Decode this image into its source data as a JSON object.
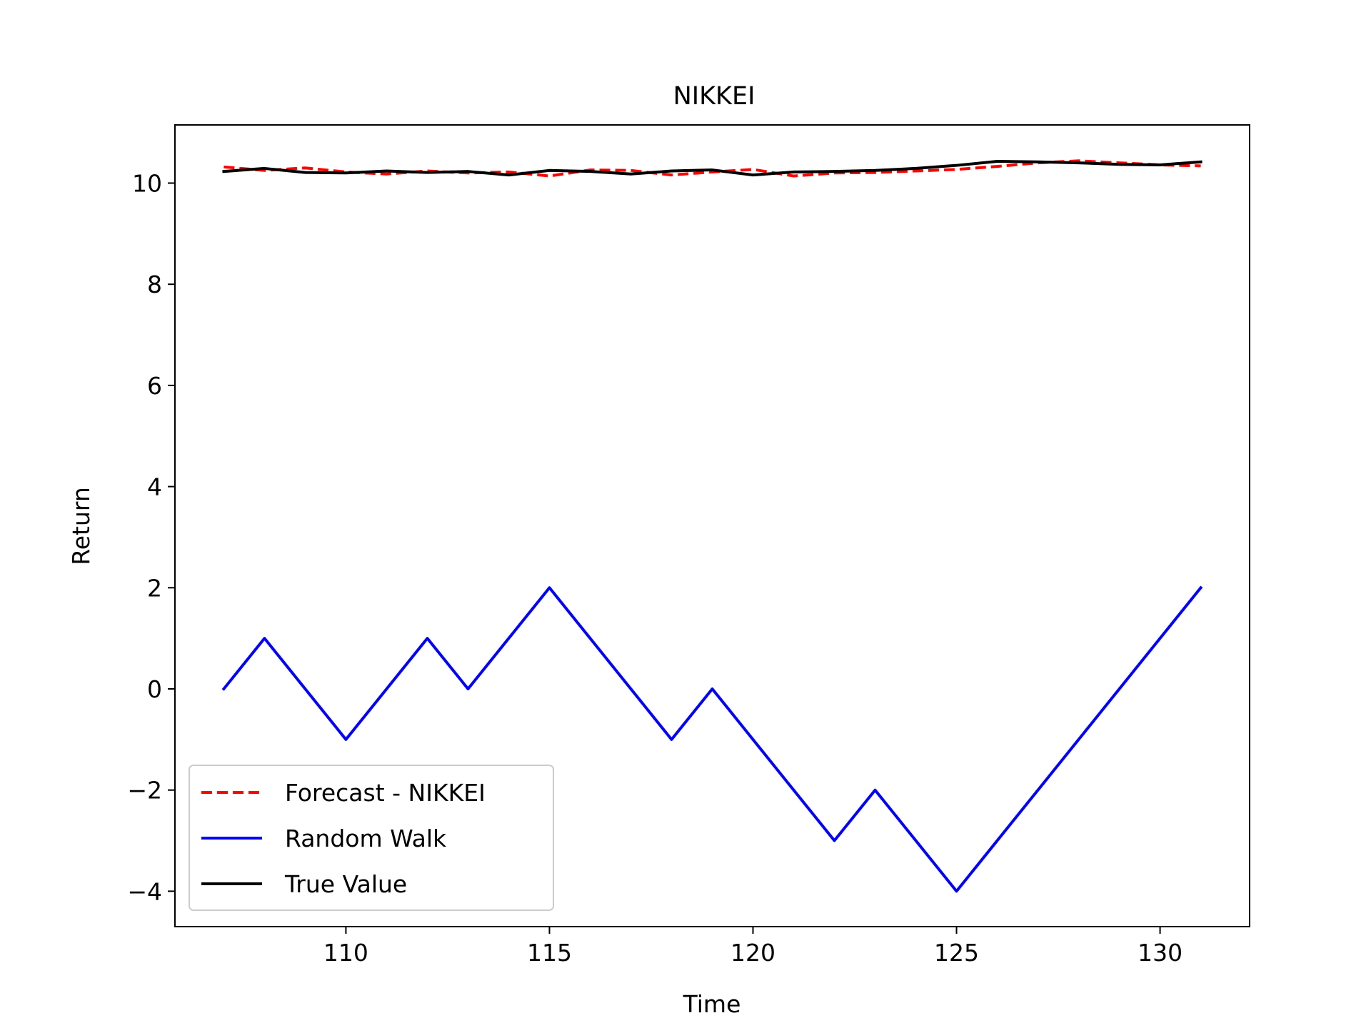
{
  "chart_data": {
    "type": "line",
    "title": "NIKKEI",
    "xlabel": "Time",
    "ylabel": "Return",
    "xlim": [
      105.8,
      132.2
    ],
    "ylim": [
      -4.7,
      11.15
    ],
    "xticks": [
      110,
      115,
      120,
      125,
      130
    ],
    "yticks": [
      -4,
      -2,
      0,
      2,
      4,
      6,
      8,
      10
    ],
    "ytick_labels": [
      "−4",
      "−2",
      "0",
      "2",
      "4",
      "6",
      "8",
      "10"
    ],
    "grid": false,
    "legend_position": "lower-left",
    "x": [
      107,
      108,
      109,
      110,
      111,
      112,
      113,
      114,
      115,
      116,
      117,
      118,
      119,
      120,
      121,
      122,
      123,
      124,
      125,
      126,
      127,
      128,
      129,
      130,
      131
    ],
    "series": [
      {
        "name": "Forecast - NIKKEI",
        "color": "#ff0000",
        "style": "dashed",
        "values": [
          10.32,
          10.25,
          10.3,
          10.22,
          10.18,
          10.24,
          10.2,
          10.22,
          10.14,
          10.26,
          10.25,
          10.16,
          10.22,
          10.27,
          10.14,
          10.2,
          10.21,
          10.24,
          10.27,
          10.33,
          10.4,
          10.44,
          10.4,
          10.36,
          10.34
        ]
      },
      {
        "name": "Random Walk",
        "color": "#0000ff",
        "style": "solid",
        "values": [
          0,
          1,
          0,
          -1,
          0,
          1,
          0,
          1,
          2,
          1,
          0,
          -1,
          0,
          -1,
          -2,
          -3,
          -2,
          -3,
          -4,
          -3,
          -2,
          -1,
          0,
          1,
          2
        ]
      },
      {
        "name": "True Value",
        "color": "#000000",
        "style": "solid",
        "values": [
          10.23,
          10.29,
          10.21,
          10.2,
          10.24,
          10.21,
          10.23,
          10.16,
          10.25,
          10.23,
          10.18,
          10.24,
          10.26,
          10.16,
          10.22,
          10.23,
          10.25,
          10.29,
          10.35,
          10.43,
          10.42,
          10.4,
          10.37,
          10.36,
          10.42
        ]
      }
    ]
  }
}
